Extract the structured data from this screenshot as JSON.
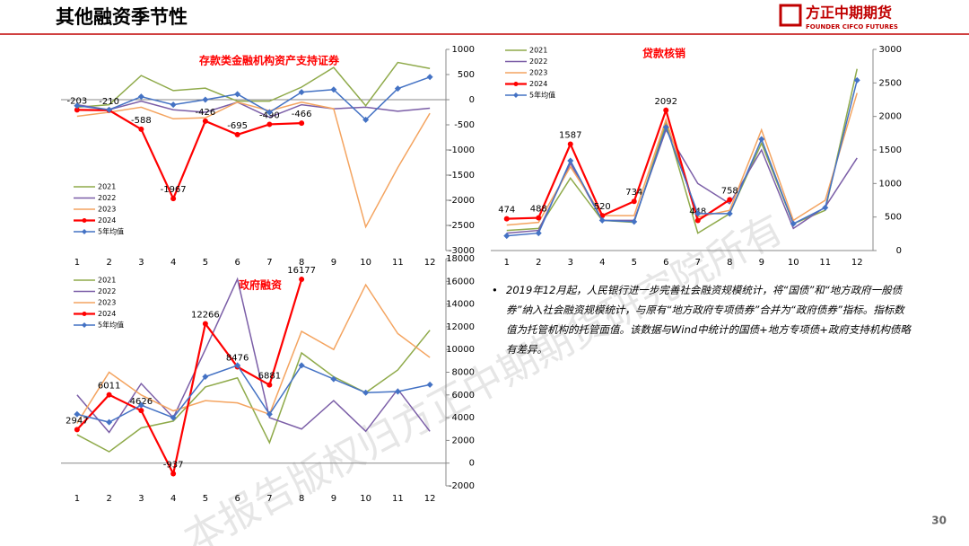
{
  "header": {
    "title": "其他融资季节性",
    "logo": "方正中期期货",
    "logo_en": "FOUNDER CIFCO FUTURES"
  },
  "note": "2019年12月起，人民银行进一步完善社会融资规模统计，将“国债”和“地方政府一般债券”纳入社会融资规模统计，与原有“地方政府专项债券”合并为“政府债券”指标。指标数值为托管机构的托管面值。该数据与Wind中统计的国债+地方专项债+政府支持机构债略有差异。",
  "page_number": "30",
  "watermark": "本报告版权归方正中期期货研究院所有",
  "chart_data": [
    {
      "type": "line",
      "title": "存款类金融机构资产支持证券",
      "legend": "lower left",
      "categories": [
        "1",
        "2",
        "3",
        "4",
        "5",
        "6",
        "7",
        "8",
        "9",
        "10",
        "11",
        "12"
      ],
      "ylim": [
        -3000,
        1000
      ],
      "yticks": [
        -3000,
        -2500,
        -2000,
        -1500,
        -1000,
        -500,
        0,
        500,
        1000
      ],
      "series": [
        {
          "name": "2021",
          "color": "#8faa4a",
          "values": [
            -150,
            -100,
            480,
            180,
            230,
            -30,
            -30,
            250,
            640,
            -120,
            740,
            620
          ]
        },
        {
          "name": "2022",
          "color": "#7b5ea7",
          "values": [
            -100,
            -200,
            -30,
            -200,
            -250,
            -50,
            -350,
            -100,
            -180,
            -150,
            -230,
            -170
          ]
        },
        {
          "name": "2023",
          "color": "#f4a460",
          "values": [
            -330,
            -250,
            -150,
            -380,
            -360,
            -50,
            -220,
            -50,
            -180,
            -2530,
            -1350,
            -270
          ]
        },
        {
          "name": "2024",
          "color": "#ff0000",
          "marker": "circle",
          "show_values": true,
          "values": [
            -203,
            -210,
            -588,
            -1967,
            -426,
            -695,
            -490,
            -466,
            null,
            null,
            null,
            null
          ]
        },
        {
          "name": "5年均值",
          "color": "#4472c4",
          "marker": "diamond",
          "values": [
            -120,
            -200,
            60,
            -100,
            0,
            110,
            -250,
            150,
            200,
            -400,
            220,
            450
          ]
        }
      ]
    },
    {
      "type": "line",
      "title": "贷款核销",
      "legend": "upper left",
      "categories": [
        "1",
        "2",
        "3",
        "4",
        "5",
        "6",
        "7",
        "8",
        "9",
        "10",
        "11",
        "12"
      ],
      "ylim": [
        0,
        3000
      ],
      "yticks": [
        0,
        500,
        1000,
        1500,
        2000,
        2500,
        3000
      ],
      "series": [
        {
          "name": "2021",
          "color": "#8faa4a",
          "values": [
            300,
            330,
            1080,
            450,
            420,
            1900,
            260,
            550,
            1600,
            400,
            600,
            2710
          ]
        },
        {
          "name": "2022",
          "color": "#7b5ea7",
          "values": [
            260,
            300,
            1300,
            450,
            450,
            1800,
            1000,
            700,
            1500,
            330,
            650,
            1380
          ]
        },
        {
          "name": "2023",
          "color": "#f4a460",
          "values": [
            380,
            420,
            1250,
            520,
            520,
            1950,
            500,
            600,
            1800,
            450,
            750,
            2350
          ]
        },
        {
          "name": "2024",
          "color": "#ff0000",
          "marker": "circle",
          "show_values": true,
          "values": [
            474,
            488,
            1587,
            520,
            734,
            2092,
            448,
            758,
            null,
            null,
            null,
            null
          ]
        },
        {
          "name": "5年均值",
          "color": "#4472c4",
          "marker": "diamond",
          "values": [
            220,
            260,
            1340,
            450,
            430,
            1840,
            550,
            550,
            1660,
            400,
            640,
            2540
          ]
        }
      ]
    },
    {
      "type": "line",
      "title": "政府融资",
      "legend": "upper left",
      "categories": [
        "1",
        "2",
        "3",
        "4",
        "5",
        "6",
        "7",
        "8",
        "9",
        "10",
        "11",
        "12"
      ],
      "ylim": [
        -2000,
        18000
      ],
      "yticks": [
        -2000,
        0,
        2000,
        4000,
        6000,
        8000,
        10000,
        12000,
        14000,
        16000,
        18000
      ],
      "series": [
        {
          "name": "2021",
          "color": "#8faa4a",
          "values": [
            2500,
            1000,
            3100,
            3700,
            6700,
            7500,
            1800,
            9700,
            7600,
            6200,
            8200,
            11700
          ]
        },
        {
          "name": "2022",
          "color": "#7b5ea7",
          "values": [
            6000,
            2700,
            7000,
            4000,
            10000,
            16200,
            4000,
            3000,
            5500,
            2800,
            6500,
            2800
          ]
        },
        {
          "name": "2023",
          "color": "#f4a460",
          "values": [
            3500,
            8000,
            6000,
            4600,
            5500,
            5300,
            4300,
            11600,
            10000,
            15700,
            11400,
            9300
          ]
        },
        {
          "name": "2024",
          "color": "#ff0000",
          "marker": "circle",
          "show_values": true,
          "values": [
            2947,
            6011,
            4626,
            -937,
            12266,
            8476,
            6881,
            16177,
            null,
            null,
            null,
            null
          ]
        },
        {
          "name": "5年均值",
          "color": "#4472c4",
          "marker": "diamond",
          "values": [
            4300,
            3600,
            5100,
            4000,
            7600,
            8600,
            4300,
            8600,
            7400,
            6200,
            6300,
            6900
          ]
        }
      ]
    }
  ]
}
